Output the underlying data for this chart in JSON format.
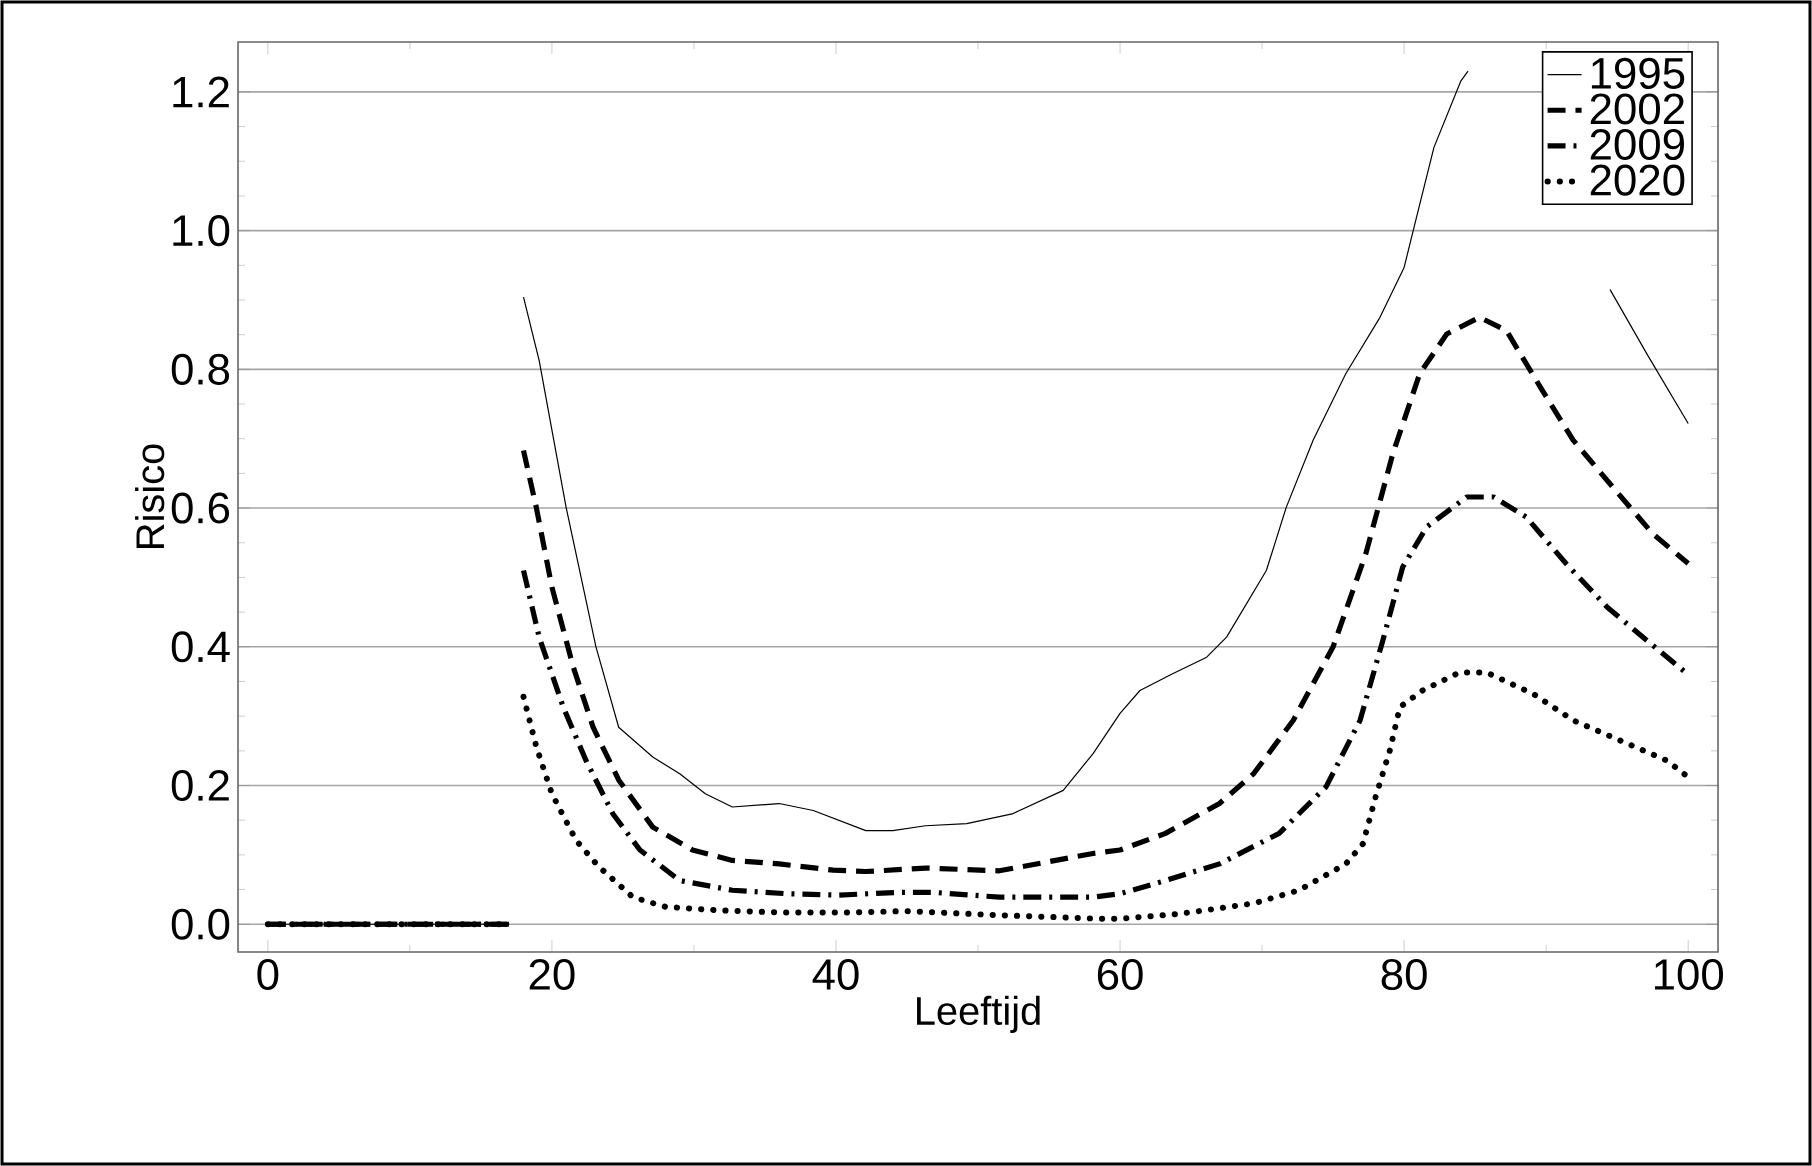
{
  "chart_data": {
    "type": "line",
    "xlabel": "Leeftijd",
    "ylabel": "Risico",
    "xlim": [
      -2.1,
      102.1
    ],
    "xticks": [
      0,
      20,
      40,
      60,
      80,
      100
    ],
    "ylim": [
      -0.04,
      1.272
    ],
    "yticks": [
      {
        "value": 0,
        "label": "0.0"
      },
      0.2,
      0.4,
      0.6,
      0.8,
      {
        "value": 1,
        "label": "1.0"
      },
      1.2
    ],
    "grid": "y",
    "legend": "top right",
    "marker": "none",
    "series": [
      {
        "name": "1995",
        "color": "#000000",
        "line_style": "solid",
        "x": [
          0,
          17,
          17.5,
          18.0,
          19.1,
          21.0,
          23.1,
          24.7,
          27.1,
          29.0,
          30.8,
          32.7,
          36.0,
          38.4,
          42.1,
          44.0,
          46.3,
          49.2,
          52.4,
          56.0,
          58.1,
          60,
          61.4,
          63.7,
          66.1,
          67.5,
          70.3,
          71.7,
          73.6,
          75.9,
          78.3,
          80,
          80.7,
          82.1,
          84.0,
          84.5,
          90,
          94.5,
          97.1,
          100
        ],
        "values": [
          0,
          0,
          null,
          0.904,
          0.813,
          0.601,
          0.4,
          0.284,
          0.241,
          0.217,
          0.188,
          0.169,
          0.174,
          0.164,
          0.135,
          0.135,
          0.142,
          0.145,
          0.159,
          0.193,
          0.246,
          0.304,
          0.337,
          0.361,
          0.385,
          0.414,
          0.51,
          0.601,
          0.698,
          0.794,
          0.875,
          0.947,
          1.005,
          1.12,
          1.216,
          1.23,
          null,
          0.915,
          0.822,
          0.722
        ]
      },
      {
        "name": "2002",
        "color": "#000000",
        "line_style": "dashed",
        "x": [
          0,
          17,
          17.5,
          18.0,
          18.9,
          20.0,
          21.5,
          22.9,
          24.7,
          27.1,
          29.9,
          32.7,
          36.0,
          39.8,
          42.1,
          46.3,
          51.5,
          58.1,
          60,
          63.2,
          67.0,
          69.4,
          72.2,
          75.0,
          77.3,
          79.2,
          81.1,
          83.0,
          85.3,
          87.2,
          89.6,
          91.9,
          94.7,
          97.5,
          100
        ],
        "values": [
          0,
          0,
          null,
          0.683,
          0.601,
          0.486,
          0.371,
          0.284,
          0.208,
          0.14,
          0.107,
          0.092,
          0.087,
          0.078,
          0.076,
          0.081,
          0.077,
          0.102,
          0.107,
          0.131,
          0.174,
          0.217,
          0.294,
          0.4,
          0.534,
          0.678,
          0.794,
          0.851,
          0.875,
          0.856,
          0.774,
          0.698,
          0.63,
          0.563,
          0.52
        ]
      },
      {
        "name": "2009",
        "color": "#000000",
        "line_style": "dashdot",
        "x": [
          0,
          17,
          17.5,
          18.0,
          19.1,
          20.8,
          22.4,
          24.3,
          26.2,
          29.0,
          32.7,
          36.5,
          40.2,
          44.5,
          46.8,
          51.5,
          58.1,
          60,
          63.2,
          67.0,
          71.2,
          74.5,
          76.9,
          78.5,
          79.9,
          81.6,
          84.4,
          86.3,
          88.6,
          91.4,
          94.3,
          97.1,
          100
        ],
        "values": [
          0,
          0,
          null,
          0.51,
          0.414,
          0.313,
          0.236,
          0.159,
          0.107,
          0.063,
          0.049,
          0.044,
          0.042,
          0.046,
          0.046,
          0.039,
          0.039,
          0.044,
          0.063,
          0.087,
          0.131,
          0.198,
          0.294,
          0.409,
          0.515,
          0.573,
          0.616,
          0.616,
          0.587,
          0.52,
          0.457,
          0.409,
          0.36
        ]
      },
      {
        "name": "2020",
        "color": "#000000",
        "line_style": "dotted",
        "x": [
          0,
          17,
          17.5,
          18.0,
          18.9,
          20.0,
          21.7,
          23.3,
          25.7,
          28.0,
          31.8,
          36.0,
          41.2,
          44.9,
          51.5,
          58.5,
          60,
          64.2,
          69.4,
          72.6,
          75.9,
          77.1,
          78.0,
          79.0,
          79.7,
          81.3,
          83.9,
          85.8,
          89.1,
          91.9,
          95.2,
          98.5,
          100
        ],
        "values": [
          0,
          0,
          null,
          0.328,
          0.256,
          0.188,
          0.121,
          0.083,
          0.039,
          0.025,
          0.02,
          0.017,
          0.017,
          0.019,
          0.013,
          0.008,
          0.008,
          0.015,
          0.03,
          0.049,
          0.087,
          0.116,
          0.184,
          0.251,
          0.313,
          0.337,
          0.363,
          0.363,
          0.332,
          0.294,
          0.265,
          0.236,
          0.212
        ]
      }
    ]
  }
}
